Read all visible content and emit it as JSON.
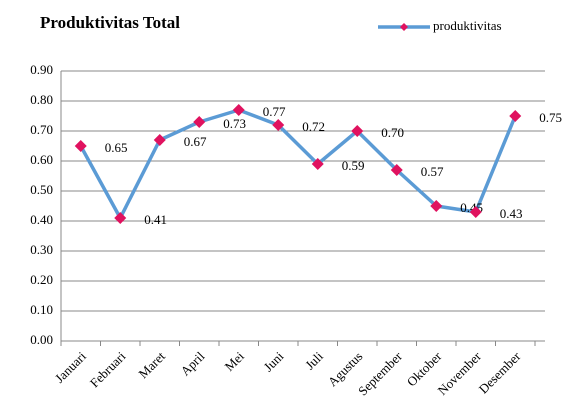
{
  "chart_data": {
    "type": "line",
    "title": "Produktivitas Total",
    "categories": [
      "Januari",
      "Februari",
      "Maret",
      "April",
      "Mei",
      "Juni",
      "Juli",
      "Agustus",
      "September",
      "Oktober",
      "November",
      "Desember"
    ],
    "series": [
      {
        "name": "produktivitas",
        "color": "#5b9bd5",
        "marker_color": "#e0125f",
        "values": [
          0.65,
          0.41,
          0.67,
          0.73,
          0.77,
          0.72,
          0.59,
          0.7,
          0.57,
          0.45,
          0.43,
          0.75
        ],
        "value_labels": [
          "0.65",
          "0.41",
          "0.67",
          "0.73",
          "0.77",
          "0.72",
          "0.59",
          "0.70",
          "0.57",
          "0.45",
          "0.43",
          "0.75"
        ]
      }
    ],
    "ylim": [
      0,
      0.9
    ],
    "yticks": [
      {
        "value": 0,
        "label": "0.00"
      },
      {
        "value": 0.1,
        "label": "0.10"
      },
      {
        "value": 0.2,
        "label": "0.20"
      },
      {
        "value": 0.3,
        "label": "0.30"
      },
      {
        "value": 0.4,
        "label": "0.40"
      },
      {
        "value": 0.5,
        "label": "0.50"
      },
      {
        "value": 0.6,
        "label": "0.60"
      },
      {
        "value": 0.7,
        "label": "0.70"
      },
      {
        "value": 0.8,
        "label": "0.80"
      },
      {
        "value": 0.9,
        "label": "0.90"
      }
    ],
    "grid": true,
    "legend": "top-right"
  }
}
